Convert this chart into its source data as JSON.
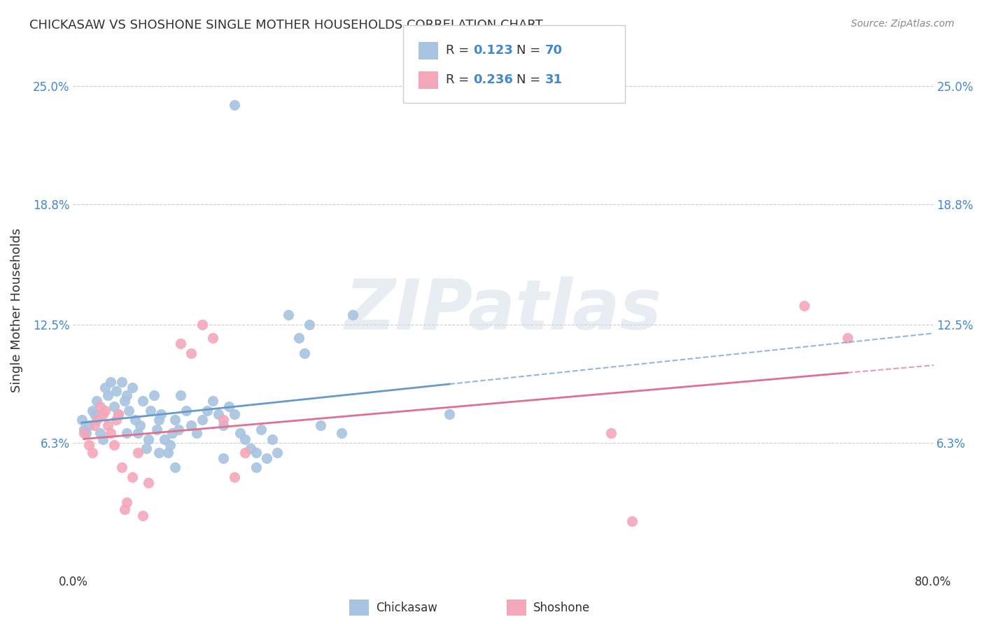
{
  "title": "CHICKASAW VS SHOSHONE SINGLE MOTHER HOUSEHOLDS CORRELATION CHART",
  "source": "Source: ZipAtlas.com",
  "ylabel": "Single Mother Households",
  "xlim": [
    0.0,
    0.8
  ],
  "ylim": [
    -0.01,
    0.27
  ],
  "yticks": [
    0.063,
    0.125,
    0.188,
    0.25
  ],
  "ytick_labels": [
    "6.3%",
    "12.5%",
    "18.8%",
    "25.0%"
  ],
  "chickasaw_R": 0.123,
  "chickasaw_N": 70,
  "shoshone_R": 0.236,
  "shoshone_N": 31,
  "chickasaw_color": "#a8c4e0",
  "shoshone_color": "#f4a7b9",
  "trendline_chickasaw_color": "#6699cc",
  "trendline_shoshone_color": "#e07090",
  "watermark": "ZIPatlas",
  "watermark_color": "#d0dce8",
  "label_color": "#4488cc",
  "background_color": "#ffffff",
  "chickasaw_points": [
    [
      0.008,
      0.075
    ],
    [
      0.01,
      0.07
    ],
    [
      0.012,
      0.068
    ],
    [
      0.015,
      0.072
    ],
    [
      0.018,
      0.08
    ],
    [
      0.02,
      0.078
    ],
    [
      0.022,
      0.085
    ],
    [
      0.025,
      0.068
    ],
    [
      0.028,
      0.065
    ],
    [
      0.03,
      0.092
    ],
    [
      0.032,
      0.088
    ],
    [
      0.035,
      0.095
    ],
    [
      0.038,
      0.082
    ],
    [
      0.04,
      0.09
    ],
    [
      0.042,
      0.078
    ],
    [
      0.045,
      0.095
    ],
    [
      0.048,
      0.085
    ],
    [
      0.05,
      0.088
    ],
    [
      0.052,
      0.08
    ],
    [
      0.055,
      0.092
    ],
    [
      0.058,
      0.075
    ],
    [
      0.06,
      0.068
    ],
    [
      0.062,
      0.072
    ],
    [
      0.065,
      0.085
    ],
    [
      0.068,
      0.06
    ],
    [
      0.07,
      0.065
    ],
    [
      0.072,
      0.08
    ],
    [
      0.075,
      0.088
    ],
    [
      0.078,
      0.07
    ],
    [
      0.08,
      0.075
    ],
    [
      0.082,
      0.078
    ],
    [
      0.085,
      0.065
    ],
    [
      0.088,
      0.058
    ],
    [
      0.09,
      0.062
    ],
    [
      0.092,
      0.068
    ],
    [
      0.095,
      0.075
    ],
    [
      0.098,
      0.07
    ],
    [
      0.1,
      0.088
    ],
    [
      0.105,
      0.08
    ],
    [
      0.11,
      0.072
    ],
    [
      0.115,
      0.068
    ],
    [
      0.12,
      0.075
    ],
    [
      0.125,
      0.08
    ],
    [
      0.13,
      0.085
    ],
    [
      0.135,
      0.078
    ],
    [
      0.14,
      0.072
    ],
    [
      0.145,
      0.082
    ],
    [
      0.15,
      0.078
    ],
    [
      0.155,
      0.068
    ],
    [
      0.16,
      0.065
    ],
    [
      0.165,
      0.06
    ],
    [
      0.17,
      0.058
    ],
    [
      0.175,
      0.07
    ],
    [
      0.18,
      0.055
    ],
    [
      0.185,
      0.065
    ],
    [
      0.19,
      0.058
    ],
    [
      0.2,
      0.13
    ],
    [
      0.21,
      0.118
    ],
    [
      0.215,
      0.11
    ],
    [
      0.22,
      0.125
    ],
    [
      0.23,
      0.072
    ],
    [
      0.25,
      0.068
    ],
    [
      0.26,
      0.13
    ],
    [
      0.35,
      0.078
    ],
    [
      0.15,
      0.24
    ],
    [
      0.05,
      0.068
    ],
    [
      0.08,
      0.058
    ],
    [
      0.095,
      0.05
    ],
    [
      0.14,
      0.055
    ],
    [
      0.17,
      0.05
    ]
  ],
  "shoshone_points": [
    [
      0.01,
      0.068
    ],
    [
      0.015,
      0.062
    ],
    [
      0.018,
      0.058
    ],
    [
      0.02,
      0.072
    ],
    [
      0.022,
      0.075
    ],
    [
      0.025,
      0.082
    ],
    [
      0.028,
      0.078
    ],
    [
      0.03,
      0.08
    ],
    [
      0.032,
      0.072
    ],
    [
      0.035,
      0.068
    ],
    [
      0.038,
      0.062
    ],
    [
      0.04,
      0.075
    ],
    [
      0.042,
      0.078
    ],
    [
      0.045,
      0.05
    ],
    [
      0.048,
      0.028
    ],
    [
      0.05,
      0.032
    ],
    [
      0.055,
      0.045
    ],
    [
      0.06,
      0.058
    ],
    [
      0.065,
      0.025
    ],
    [
      0.07,
      0.042
    ],
    [
      0.1,
      0.115
    ],
    [
      0.11,
      0.11
    ],
    [
      0.12,
      0.125
    ],
    [
      0.13,
      0.118
    ],
    [
      0.14,
      0.075
    ],
    [
      0.15,
      0.045
    ],
    [
      0.16,
      0.058
    ],
    [
      0.5,
      0.068
    ],
    [
      0.52,
      0.022
    ],
    [
      0.68,
      0.135
    ],
    [
      0.72,
      0.118
    ]
  ]
}
